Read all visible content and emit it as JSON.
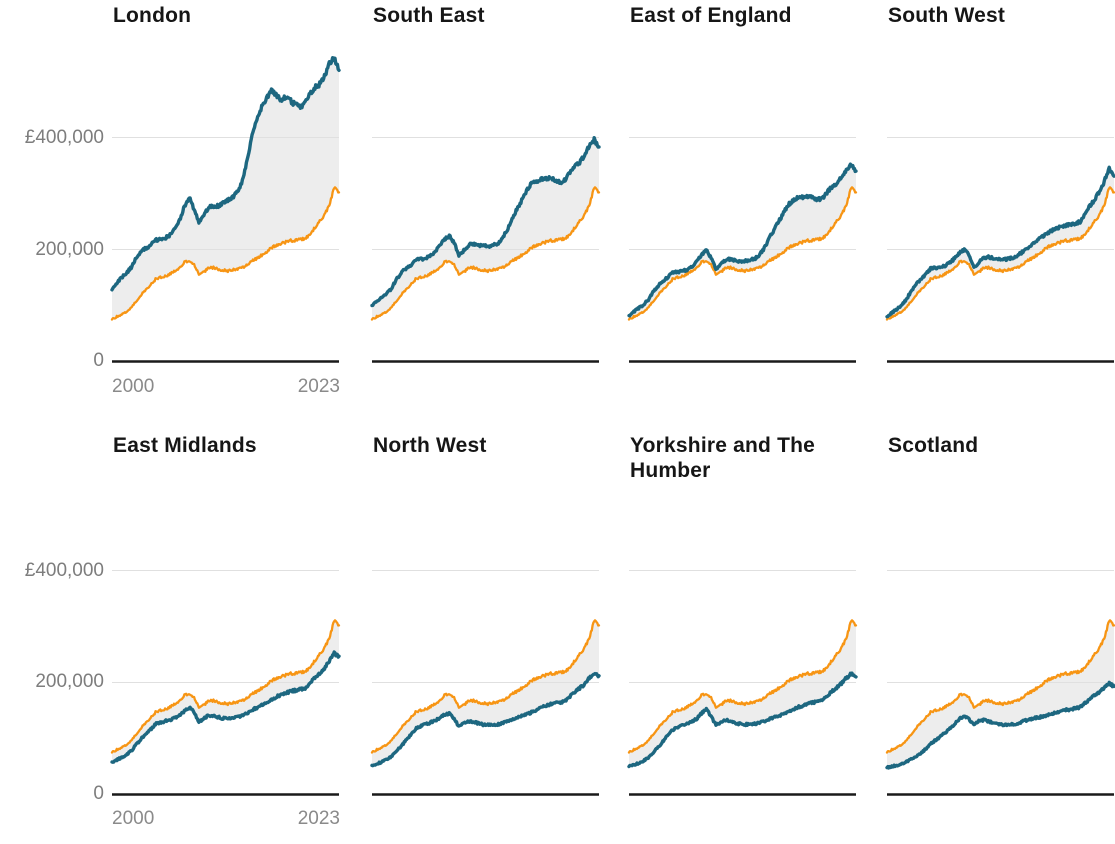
{
  "colors": {
    "region_line": "#1d6780",
    "uk_line": "#f79514",
    "band_fill": "#ededed",
    "gridline": "#e0e0e0",
    "axis_line": "#1a1a1a",
    "title_text": "#161616",
    "tick_text": "#7d7d7d"
  },
  "y_axis": {
    "tick_labels": [
      "£400,000",
      "200,000",
      "0"
    ],
    "tick_values": [
      400000,
      200000,
      0
    ]
  },
  "x_axis": {
    "tick_labels": [
      "2000",
      "2023"
    ],
    "domain_start": 2000,
    "domain_end": 2023.5
  },
  "chart_data": {
    "type": "line",
    "values_unit": "thousand_gbp",
    "grid": "horizontal",
    "legend": "none",
    "x": [
      2000,
      2000.5,
      2001,
      2001.5,
      2002,
      2002.5,
      2003,
      2003.5,
      2004,
      2004.5,
      2005,
      2005.5,
      2006,
      2006.5,
      2007,
      2007.5,
      2008,
      2008.5,
      2009,
      2009.5,
      2010,
      2010.5,
      2011,
      2011.5,
      2012,
      2012.5,
      2013,
      2013.5,
      2014,
      2014.5,
      2015,
      2015.5,
      2016,
      2016.5,
      2017,
      2017.5,
      2018,
      2018.5,
      2019,
      2019.5,
      2020,
      2020.5,
      2021,
      2021.5,
      2022,
      2022.5,
      2023,
      2023.5
    ],
    "uk_series": {
      "id": "comparison-line-orange",
      "color": "#f79514",
      "values": [
        75,
        80,
        84,
        89,
        96,
        108,
        119,
        128,
        136,
        147,
        150,
        152,
        156,
        162,
        168,
        177,
        180,
        172,
        155,
        160,
        167,
        168,
        164,
        163,
        162,
        164,
        165,
        168,
        173,
        180,
        184,
        190,
        196,
        203,
        207,
        211,
        213,
        216,
        216,
        218,
        219,
        228,
        238,
        250,
        262,
        278,
        310,
        302
      ]
    },
    "panels": [
      {
        "title": "London",
        "values": [
          128,
          140,
          150,
          158,
          168,
          185,
          196,
          202,
          207,
          217,
          218,
          220,
          226,
          236,
          252,
          278,
          293,
          272,
          248,
          262,
          275,
          278,
          278,
          283,
          288,
          294,
          302,
          322,
          360,
          405,
          430,
          455,
          470,
          483,
          475,
          468,
          472,
          465,
          458,
          455,
          462,
          478,
          490,
          495,
          510,
          532,
          542,
          520
        ]
      },
      {
        "title": "South East",
        "values": [
          100,
          108,
          114,
          121,
          130,
          146,
          158,
          166,
          172,
          182,
          183,
          184,
          188,
          196,
          206,
          218,
          224,
          212,
          188,
          198,
          208,
          210,
          207,
          206,
          206,
          208,
          210,
          220,
          235,
          255,
          272,
          288,
          305,
          318,
          322,
          325,
          326,
          327,
          324,
          320,
          324,
          338,
          350,
          356,
          368,
          385,
          396,
          383
        ]
      },
      {
        "title": "East of England",
        "values": [
          82,
          89,
          95,
          102,
          110,
          124,
          135,
          143,
          150,
          159,
          160,
          161,
          164,
          170,
          178,
          190,
          198,
          186,
          165,
          174,
          181,
          183,
          180,
          179,
          179,
          181,
          183,
          190,
          202,
          220,
          235,
          250,
          265,
          280,
          288,
          292,
          294,
          295,
          292,
          289,
          291,
          302,
          312,
          318,
          328,
          342,
          352,
          340
        ]
      },
      {
        "title": "South West",
        "values": [
          80,
          87,
          93,
          100,
          110,
          126,
          138,
          147,
          155,
          166,
          167,
          168,
          171,
          177,
          184,
          194,
          200,
          190,
          168,
          177,
          185,
          187,
          184,
          182,
          182,
          183,
          185,
          189,
          195,
          203,
          208,
          216,
          222,
          228,
          233,
          237,
          240,
          243,
          245,
          247,
          250,
          263,
          277,
          290,
          303,
          322,
          344,
          331
        ]
      },
      {
        "title": "East Midlands",
        "values": [
          58,
          62,
          66,
          71,
          78,
          89,
          99,
          108,
          116,
          126,
          129,
          131,
          133,
          137,
          141,
          149,
          155,
          147,
          129,
          136,
          141,
          141,
          138,
          136,
          136,
          137,
          138,
          141,
          145,
          151,
          155,
          159,
          164,
          170,
          174,
          178,
          181,
          184,
          186,
          188,
          190,
          199,
          208,
          217,
          226,
          238,
          252,
          247
        ]
      },
      {
        "title": "North West",
        "values": [
          52,
          55,
          58,
          62,
          68,
          77,
          86,
          96,
          107,
          117,
          122,
          125,
          128,
          132,
          136,
          142,
          144,
          136,
          121,
          127,
          131,
          130,
          127,
          125,
          124,
          124,
          125,
          127,
          130,
          134,
          137,
          140,
          143,
          147,
          151,
          155,
          158,
          161,
          163,
          165,
          167,
          175,
          183,
          190,
          197,
          208,
          217,
          212
        ]
      },
      {
        "title": "Yorkshire and The Humber",
        "values": [
          50,
          53,
          56,
          60,
          66,
          75,
          84,
          94,
          105,
          115,
          120,
          123,
          126,
          130,
          135,
          145,
          152,
          140,
          124,
          129,
          133,
          131,
          128,
          126,
          125,
          125,
          126,
          128,
          131,
          135,
          138,
          141,
          144,
          148,
          152,
          156,
          159,
          162,
          164,
          166,
          168,
          176,
          184,
          191,
          198,
          208,
          215,
          210
        ]
      },
      {
        "title": "Scotland",
        "values": [
          48,
          50,
          52,
          54,
          58,
          63,
          68,
          74,
          81,
          90,
          97,
          103,
          110,
          118,
          126,
          135,
          141,
          134,
          126,
          131,
          133,
          131,
          128,
          126,
          125,
          124,
          125,
          127,
          130,
          133,
          135,
          137,
          139,
          141,
          144,
          147,
          149,
          151,
          152,
          154,
          156,
          163,
          171,
          177,
          183,
          191,
          199,
          193
        ]
      }
    ]
  }
}
